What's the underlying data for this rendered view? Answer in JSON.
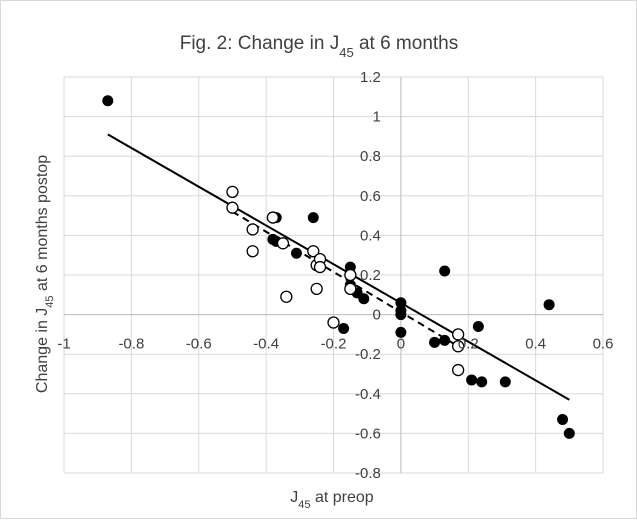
{
  "chart_data": {
    "type": "scatter",
    "title_parts": [
      "Fig. 2: Change in J",
      "45",
      " at 6 months"
    ],
    "xlabel_parts": [
      "J",
      "45",
      " at preop"
    ],
    "ylabel_parts": [
      "Change in J",
      "45",
      " at 6 months postop"
    ],
    "xlim": [
      -1,
      0.6
    ],
    "ylim": [
      -0.8,
      1.2
    ],
    "x_ticks": [
      -1,
      -0.8,
      -0.6,
      -0.4,
      -0.2,
      0,
      0.2,
      0.4,
      0.6
    ],
    "x_tick_labels": [
      "-1",
      "-0.8",
      "-0.6",
      "-0.4",
      "-0.2",
      "0",
      "0.2",
      "0.4",
      "0.6"
    ],
    "y_ticks": [
      -0.8,
      -0.6,
      -0.4,
      -0.2,
      0,
      0.2,
      0.4,
      0.6,
      0.8,
      1,
      1.2
    ],
    "y_tick_labels": [
      "-0.8",
      "-0.6",
      "-0.4",
      "-0.2",
      "0",
      "0.2",
      "0.4",
      "0.6",
      "0.8",
      "1",
      "1.2"
    ],
    "grid": true,
    "legend": "none",
    "colors": {
      "filled": "#000000",
      "hollow_fill": "#ffffff",
      "hollow_stroke": "#000000"
    },
    "series": [
      {
        "style": "filled-circle",
        "points": [
          [
            -0.87,
            1.08
          ],
          [
            -0.37,
            0.49
          ],
          [
            -0.26,
            0.49
          ],
          [
            -0.38,
            0.38
          ],
          [
            -0.37,
            0.37
          ],
          [
            -0.31,
            0.31
          ],
          [
            -0.15,
            0.24
          ],
          [
            -0.15,
            0.15
          ],
          [
            -0.13,
            0.11
          ],
          [
            -0.11,
            0.08
          ],
          [
            -0.17,
            -0.07
          ],
          [
            0,
            0.06
          ],
          [
            0,
            0.02
          ],
          [
            0,
            0
          ],
          [
            0,
            -0.09
          ],
          [
            0.13,
            0.22
          ],
          [
            0.13,
            -0.13
          ],
          [
            0.1,
            -0.14
          ],
          [
            0.23,
            -0.06
          ],
          [
            0.21,
            -0.33
          ],
          [
            0.24,
            -0.34
          ],
          [
            0.31,
            -0.34
          ],
          [
            0.44,
            0.05
          ],
          [
            0.48,
            -0.53
          ],
          [
            0.5,
            -0.6
          ]
        ]
      },
      {
        "style": "hollow-circle",
        "points": [
          [
            -0.5,
            0.62
          ],
          [
            -0.5,
            0.54
          ],
          [
            -0.44,
            0.43
          ],
          [
            -0.44,
            0.32
          ],
          [
            -0.38,
            0.49
          ],
          [
            -0.35,
            0.36
          ],
          [
            -0.34,
            0.09
          ],
          [
            -0.26,
            0.32
          ],
          [
            -0.25,
            0.25
          ],
          [
            -0.24,
            0.28
          ],
          [
            -0.24,
            0.24
          ],
          [
            -0.25,
            0.13
          ],
          [
            -0.2,
            -0.04
          ],
          [
            -0.15,
            0.2
          ],
          [
            -0.15,
            0.13
          ],
          [
            0.17,
            -0.1
          ],
          [
            0.17,
            -0.16
          ],
          [
            0.17,
            -0.28
          ]
        ]
      }
    ],
    "trendlines": [
      {
        "style": "solid",
        "x": [
          -0.87,
          0.5
        ],
        "y": [
          0.91,
          -0.43
        ]
      },
      {
        "style": "dashed",
        "x": [
          -0.5,
          0.18
        ],
        "y": [
          0.52,
          -0.17
        ]
      }
    ]
  }
}
